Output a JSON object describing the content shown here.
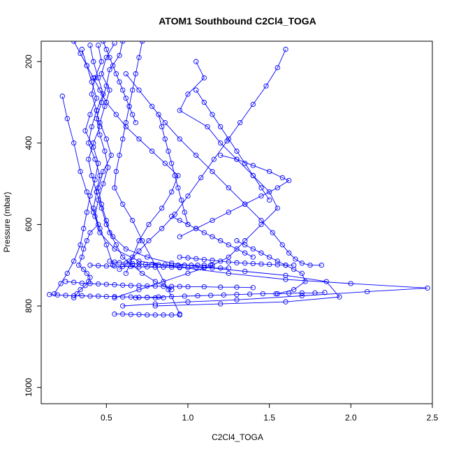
{
  "chart_data": {
    "type": "line",
    "title": "ATOM1 Southbound C2Cl4_TOGA",
    "xlabel": "C2Cl4_TOGA",
    "ylabel": "Pressure (mbar)",
    "xlim": [
      0.1,
      2.5
    ],
    "ylim": [
      1040,
      150
    ],
    "y_reversed": true,
    "x_ticks": [
      0.5,
      1.0,
      1.5,
      2.0,
      2.5
    ],
    "x_tick_labels": [
      "0.5",
      "1.0",
      "1.5",
      "2.0",
      "2.5"
    ],
    "y_ticks": [
      200,
      400,
      600,
      800,
      1000
    ],
    "y_tick_labels": [
      "200",
      "400",
      "600",
      "800",
      "1000"
    ],
    "grid": false,
    "legend": "none",
    "colors": {
      "series": "#0000ff",
      "axis": "#000000"
    },
    "series": [
      {
        "x": [
          0.4,
          0.42,
          0.45,
          0.48,
          0.44,
          0.41,
          0.39,
          0.43,
          0.46,
          0.44,
          0.42,
          0.45,
          0.4,
          0.38,
          0.36,
          0.35,
          0.33,
          0.36,
          0.38,
          0.4,
          0.39,
          0.37,
          0.34,
          0.32,
          0.3
        ],
        "y": [
          160,
          200,
          240,
          280,
          320,
          360,
          400,
          440,
          480,
          520,
          560,
          600,
          620,
          640,
          660,
          680,
          700,
          710,
          720,
          730,
          740,
          750,
          760,
          770,
          780
        ]
      },
      {
        "x": [
          0.55,
          0.5,
          0.47,
          0.52,
          0.49,
          0.46,
          0.5,
          0.53,
          0.48,
          0.45,
          0.47,
          0.5,
          0.52,
          0.56,
          0.6,
          0.66,
          0.72,
          0.8,
          0.9
        ],
        "y": [
          155,
          190,
          230,
          270,
          310,
          350,
          390,
          430,
          470,
          510,
          550,
          590,
          620,
          650,
          680,
          700,
          720,
          740,
          760
        ]
      },
      {
        "x": [
          0.35,
          0.38,
          0.41,
          0.44,
          0.4,
          0.37,
          0.42,
          0.45,
          0.43,
          0.4,
          0.38,
          0.36,
          0.34,
          0.3,
          0.26,
          0.22,
          0.18
        ],
        "y": [
          170,
          210,
          250,
          290,
          330,
          370,
          410,
          450,
          490,
          530,
          570,
          610,
          650,
          690,
          720,
          745,
          770
        ]
      },
      {
        "x": [
          0.6,
          0.58,
          0.52,
          0.5,
          0.47,
          0.44,
          0.46,
          0.49,
          0.51,
          0.48,
          0.45,
          0.43,
          0.46,
          0.55,
          0.7,
          0.95,
          1.25,
          1.6,
          2.0,
          2.47,
          2.1,
          1.7,
          1.3,
          1.0,
          0.8,
          0.6
        ],
        "y": [
          150,
          185,
          220,
          260,
          300,
          340,
          380,
          420,
          460,
          500,
          540,
          580,
          620,
          660,
          690,
          705,
          720,
          735,
          745,
          756,
          765,
          775,
          785,
          790,
          795,
          800
        ]
      },
      {
        "x": [
          0.45,
          0.47,
          0.43,
          0.41,
          0.44,
          0.46,
          0.42,
          0.39,
          0.41,
          0.44,
          0.47,
          0.5,
          0.54,
          0.62,
          0.75,
          0.9,
          1.1,
          1.35,
          1.6,
          1.85,
          1.93,
          1.6,
          1.2,
          0.8
        ],
        "y": [
          160,
          200,
          240,
          280,
          320,
          360,
          400,
          440,
          480,
          520,
          560,
          600,
          630,
          660,
          680,
          695,
          705,
          715,
          725,
          740,
          778,
          790,
          795,
          800
        ]
      },
      {
        "x": [
          0.62,
          0.7,
          0.78,
          0.86,
          0.95,
          1.05,
          1.15,
          1.25,
          1.35,
          1.45,
          1.52,
          1.58,
          1.62,
          1.66,
          1.7,
          1.75,
          1.82
        ],
        "y": [
          230,
          270,
          310,
          350,
          390,
          430,
          470,
          510,
          550,
          590,
          620,
          650,
          670,
          685,
          695,
          700,
          700
        ]
      },
      {
        "x": [
          1.6,
          1.55,
          1.48,
          1.4,
          1.32,
          1.24,
          1.16,
          1.08,
          1.0,
          0.92,
          0.84,
          0.76,
          0.7,
          0.64,
          0.58
        ],
        "y": [
          170,
          215,
          260,
          305,
          350,
          395,
          440,
          485,
          530,
          575,
          610,
          640,
          665,
          690,
          710
        ]
      },
      {
        "x": [
          1.05,
          1.1,
          1.0,
          0.95,
          1.12,
          1.2,
          1.3,
          1.4,
          1.5,
          1.55,
          1.45,
          1.35,
          1.25,
          1.15,
          1.0,
          0.85,
          0.7,
          0.55
        ],
        "y": [
          200,
          240,
          280,
          320,
          360,
          400,
          440,
          480,
          520,
          560,
          600,
          640,
          680,
          700,
          720,
          740,
          760,
          780
        ]
      },
      {
        "x": [
          0.3,
          0.34,
          0.38,
          0.42,
          0.46,
          0.5,
          0.56,
          0.62,
          0.7,
          0.78,
          0.86,
          0.94,
          0.9,
          0.84,
          0.76,
          0.7,
          0.66,
          0.62
        ],
        "y": [
          150,
          180,
          210,
          240,
          270,
          300,
          330,
          360,
          390,
          420,
          450,
          480,
          520,
          560,
          600,
          640,
          680,
          720
        ]
      },
      {
        "x": [
          0.72,
          0.7,
          0.68,
          0.66,
          0.64,
          0.62,
          0.6,
          0.58,
          0.56,
          0.55,
          0.6,
          0.66,
          0.72,
          0.8,
          0.88,
          0.95
        ],
        "y": [
          150,
          190,
          230,
          270,
          310,
          350,
          390,
          430,
          470,
          510,
          550,
          590,
          640,
          700,
          760,
          820
        ]
      },
      {
        "x": [
          0.52,
          0.55,
          0.58,
          0.62,
          0.66,
          0.7,
          0.74,
          0.78,
          0.82,
          0.86,
          0.9,
          0.94,
          0.98,
          1.02,
          1.06,
          1.1,
          1.14
        ],
        "y": [
          690,
          692,
          694,
          695,
          696,
          697,
          698,
          698,
          699,
          699,
          700,
          700,
          700,
          700,
          700,
          700,
          700
        ]
      },
      {
        "x": [
          0.25,
          0.3,
          0.35,
          0.4,
          0.45,
          0.5,
          0.55,
          0.6,
          0.65,
          0.7,
          0.75,
          0.8,
          0.85,
          0.9,
          0.95,
          1.0,
          1.1,
          1.2,
          1.3,
          1.4
        ],
        "y": [
          740,
          742,
          744,
          745,
          746,
          747,
          748,
          749,
          750,
          750,
          751,
          751,
          752,
          752,
          752,
          753,
          753,
          754,
          754,
          755
        ]
      },
      {
        "x": [
          0.15,
          0.2,
          0.25,
          0.3,
          0.35,
          0.4,
          0.45,
          0.5,
          0.55,
          0.6,
          0.65,
          0.7,
          0.75,
          0.8,
          0.85
        ],
        "y": [
          772,
          773,
          774,
          775,
          775,
          776,
          776,
          777,
          777,
          778,
          778,
          779,
          779,
          780,
          780
        ]
      },
      {
        "x": [
          0.55,
          0.6,
          0.65,
          0.7,
          0.75,
          0.8,
          0.85,
          0.9,
          0.95
        ],
        "y": [
          820,
          820,
          821,
          821,
          822,
          822,
          822,
          822,
          822
        ]
      },
      {
        "x": [
          1.2,
          1.3,
          1.4,
          1.5,
          1.58,
          1.62,
          1.55,
          1.45,
          1.35,
          1.25,
          1.15,
          1.05,
          0.95
        ],
        "y": [
          430,
          440,
          455,
          470,
          485,
          492,
          510,
          530,
          550,
          570,
          590,
          610,
          630
        ]
      },
      {
        "x": [
          0.95,
          1.0,
          1.05,
          1.1,
          1.15,
          1.2,
          1.25,
          1.3,
          1.35,
          1.4,
          1.45,
          1.5,
          1.55,
          1.6,
          1.65
        ],
        "y": [
          680,
          682,
          684,
          686,
          688,
          690,
          692,
          694,
          695,
          696,
          697,
          698,
          699,
          700,
          700
        ]
      },
      {
        "x": [
          1.3,
          1.35,
          1.4,
          1.45,
          1.5,
          1.55,
          1.6,
          1.65,
          1.7,
          1.72,
          1.65,
          1.55
        ],
        "y": [
          640,
          650,
          660,
          670,
          680,
          690,
          700,
          710,
          720,
          740,
          760,
          770
        ]
      },
      {
        "x": [
          1.05,
          1.1,
          1.15,
          1.2,
          1.25,
          1.3,
          1.35,
          1.4,
          1.45,
          1.5
        ],
        "y": [
          270,
          300,
          330,
          360,
          390,
          420,
          450,
          480,
          510,
          540
        ]
      },
      {
        "x": [
          0.48,
          0.5,
          0.52,
          0.54,
          0.56,
          0.58,
          0.6,
          0.62,
          0.64,
          0.66,
          0.68
        ],
        "y": [
          150,
          170,
          190,
          210,
          230,
          250,
          270,
          290,
          310,
          330,
          350
        ]
      },
      {
        "x": [
          0.23,
          0.26,
          0.3,
          0.34,
          0.38,
          0.42,
          0.46,
          0.5,
          0.54
        ],
        "y": [
          285,
          340,
          400,
          470,
          520,
          570,
          610,
          650,
          700
        ]
      },
      {
        "x": [
          0.82,
          0.84,
          0.86,
          0.88,
          0.9,
          0.92,
          0.94,
          0.96,
          0.98,
          1.0
        ],
        "y": [
          330,
          360,
          390,
          420,
          450,
          480,
          510,
          540,
          570,
          600
        ]
      },
      {
        "x": [
          0.4,
          0.45,
          0.5,
          0.55,
          0.6,
          0.65,
          0.7,
          0.75,
          0.8,
          0.85,
          0.9,
          0.95,
          1.0,
          1.05,
          1.1,
          1.15,
          1.2,
          1.25
        ],
        "y": [
          700,
          701,
          702,
          702,
          703,
          703,
          704,
          704,
          705,
          705,
          705,
          706,
          706,
          706,
          706,
          707,
          707,
          707
        ]
      },
      {
        "x": [
          0.9,
          0.95,
          1.0,
          1.05,
          1.1,
          1.15,
          1.2,
          1.25,
          1.3,
          1.35,
          1.4
        ],
        "y": [
          580,
          590,
          600,
          610,
          620,
          630,
          640,
          650,
          660,
          670,
          680
        ]
      },
      {
        "x": [
          0.68,
          0.75,
          0.82,
          0.9,
          0.98,
          1.06,
          1.14,
          1.22,
          1.3,
          1.38,
          1.46,
          1.54,
          1.62,
          1.7,
          1.78,
          1.84
        ],
        "y": [
          780,
          779,
          778,
          777,
          776,
          775,
          774,
          773,
          772,
          771,
          770,
          770,
          769,
          768,
          768,
          767
        ]
      }
    ]
  }
}
